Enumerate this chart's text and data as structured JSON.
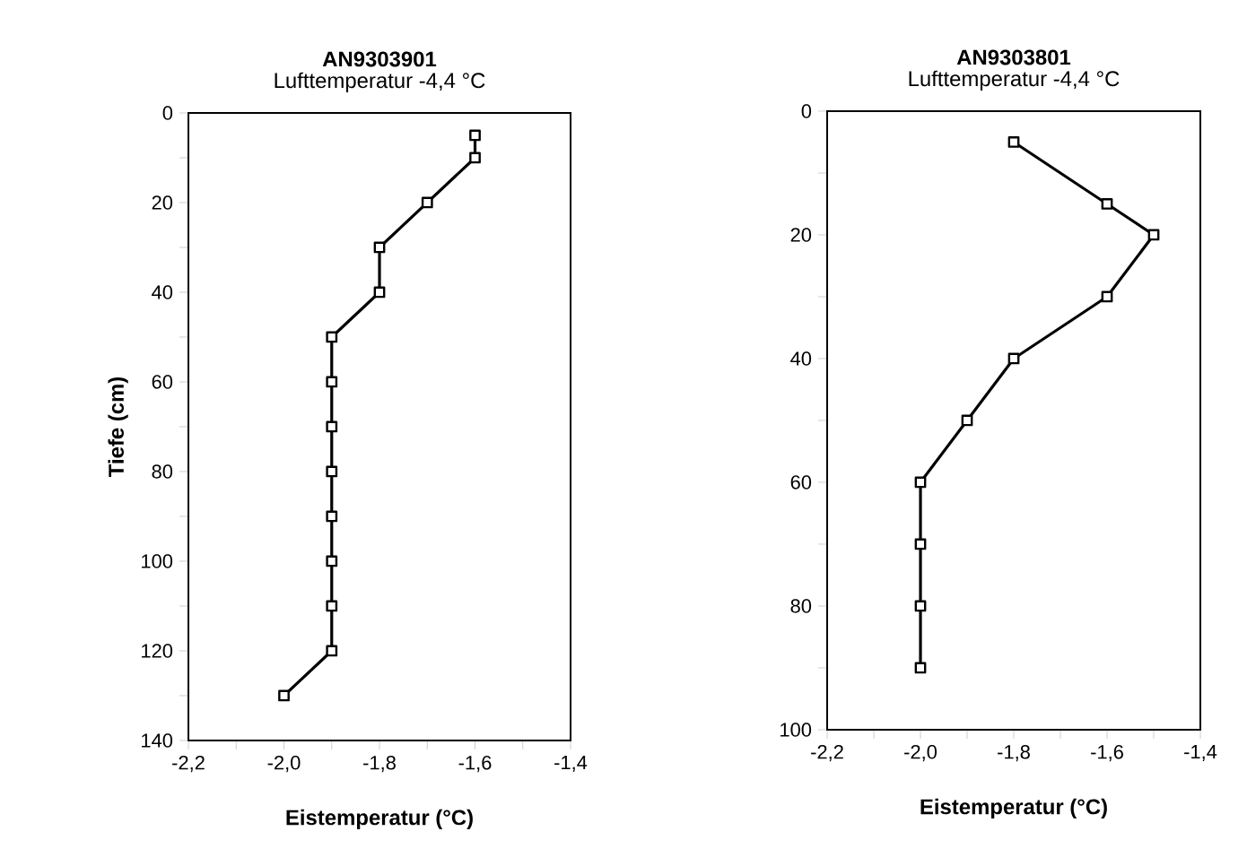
{
  "chart_data": [
    {
      "type": "line",
      "title": "AN9303901",
      "subtitle": "Lufttemperatur -4,4 °C",
      "xlabel": "Eistemperatur (°C)",
      "ylabel": "Tiefe (cm)",
      "marker": "square",
      "line_style": "solid",
      "grid": false,
      "series": [
        {
          "color": "#000000",
          "x": [
            -1.6,
            -1.6,
            -1.7,
            -1.8,
            -1.8,
            -1.9,
            -1.9,
            -1.9,
            -1.9,
            -1.9,
            -1.9,
            -1.9,
            -1.9,
            -2.0
          ],
          "values": [
            5,
            10,
            20,
            30,
            40,
            50,
            60,
            70,
            80,
            90,
            100,
            110,
            120,
            130
          ]
        }
      ],
      "xlim": [
        -2.2,
        -1.4
      ],
      "xticks": [
        {
          "value": -2.2,
          "label": "-2,2"
        },
        {
          "value": -2.1,
          "label": null
        },
        {
          "value": -2.0,
          "label": "-2,0"
        },
        {
          "value": -1.9,
          "label": null
        },
        {
          "value": -1.8,
          "label": "-1,8"
        },
        {
          "value": -1.7,
          "label": null
        },
        {
          "value": -1.6,
          "label": "-1,6"
        },
        {
          "value": -1.5,
          "label": null
        },
        {
          "value": -1.4,
          "label": "-1,4"
        }
      ],
      "ylim": [
        140,
        0
      ],
      "yticks": [
        0,
        {
          "value": 10,
          "label": null
        },
        20,
        {
          "value": 30,
          "label": null
        },
        40,
        {
          "value": 50,
          "label": null
        },
        60,
        {
          "value": 70,
          "label": null
        },
        80,
        {
          "value": 90,
          "label": null
        },
        100,
        {
          "value": 110,
          "label": null
        },
        120,
        {
          "value": 130,
          "label": null
        },
        140
      ]
    },
    {
      "type": "line",
      "title": "AN9303801",
      "subtitle": "Lufttemperatur -4,4 °C",
      "xlabel": "Eistemperatur (°C)",
      "marker": "square",
      "line_style": "solid",
      "grid": false,
      "series": [
        {
          "color": "#000000",
          "x": [
            -1.8,
            -1.6,
            -1.5,
            -1.6,
            -1.8,
            -1.9,
            -2.0,
            -2.0,
            -2.0,
            -2.0
          ],
          "values": [
            5,
            15,
            20,
            30,
            40,
            50,
            60,
            70,
            80,
            90
          ]
        }
      ],
      "xlim": [
        -2.2,
        -1.4
      ],
      "xticks": [
        {
          "value": -2.2,
          "label": "-2,2"
        },
        {
          "value": -2.1,
          "label": null
        },
        {
          "value": -2.0,
          "label": "-2,0"
        },
        {
          "value": -1.9,
          "label": null
        },
        {
          "value": -1.8,
          "label": "-1,8"
        },
        {
          "value": -1.7,
          "label": null
        },
        {
          "value": -1.6,
          "label": "-1,6"
        },
        {
          "value": -1.5,
          "label": null
        },
        {
          "value": -1.4,
          "label": "-1,4"
        }
      ],
      "ylim": [
        100,
        0
      ],
      "yticks": [
        0,
        {
          "value": 10,
          "label": null
        },
        20,
        {
          "value": 30,
          "label": null
        },
        40,
        {
          "value": 50,
          "label": null
        },
        60,
        {
          "value": 70,
          "label": null
        },
        80,
        {
          "value": 90,
          "label": null
        },
        100
      ]
    }
  ]
}
